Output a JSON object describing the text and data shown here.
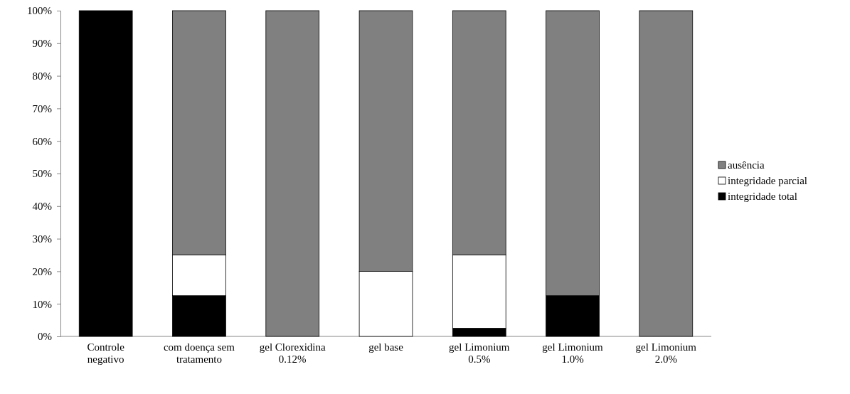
{
  "chart_data": {
    "type": "bar",
    "stacked": true,
    "categories": [
      "Controle negativo",
      "com doença sem tratamento",
      "gel Clorexidina 0.12%",
      "gel base",
      "gel Limonium 0.5%",
      "gel Limonium 1.0%",
      "gel Limonium 2.0%"
    ],
    "series": [
      {
        "name": "integridade total",
        "color": "#000000",
        "values": [
          100,
          12.5,
          0,
          0,
          2.5,
          12.5,
          0
        ]
      },
      {
        "name": "integridade parcial",
        "color": "#ffffff",
        "values": [
          0,
          12.5,
          0,
          20,
          22.5,
          0,
          0
        ]
      },
      {
        "name": "ausência",
        "color": "#808080",
        "values": [
          0,
          75,
          100,
          80,
          75,
          87.5,
          100
        ]
      }
    ],
    "ylim": [
      0,
      100
    ],
    "yticks": [
      {
        "value": 0,
        "label": "0%"
      },
      {
        "value": 10,
        "label": "10%"
      },
      {
        "value": 20,
        "label": "20%"
      },
      {
        "value": 30,
        "label": "30%"
      },
      {
        "value": 40,
        "label": "40%"
      },
      {
        "value": 50,
        "label": "50%"
      },
      {
        "value": 60,
        "label": "60%"
      },
      {
        "value": 70,
        "label": "70%"
      },
      {
        "value": 80,
        "label": "80%"
      },
      {
        "value": 90,
        "label": "90%"
      },
      {
        "value": 100,
        "label": "100%"
      }
    ],
    "legend": "right",
    "grid": false
  }
}
